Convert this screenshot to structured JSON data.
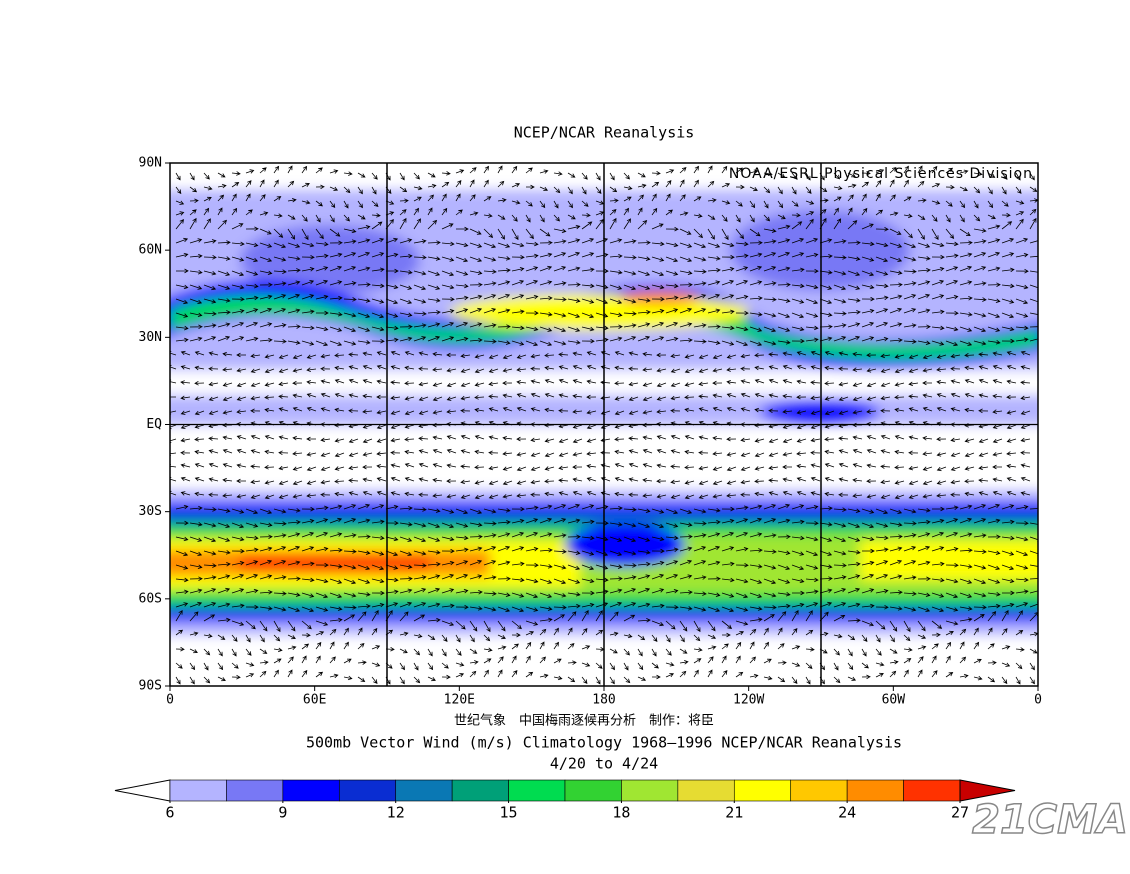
{
  "map": {
    "title": "NCEP/NCAR Reanalysis",
    "credit": "NOAA/ESRL Physical Sciences Division",
    "author_note": "世纪气象　中国梅雨逐候再分析　制作：将臣",
    "caption": "500mb Vector Wind (m/s) Climatology 1968–1996 NCEP/NCAR Reanalysis",
    "date_range": "4/20  to 4/24",
    "watermark": "21CMA",
    "xlim": [
      0,
      360
    ],
    "xticks": [
      0,
      {
        "value": 60,
        "label": "60E"
      },
      {
        "value": 120,
        "label": "120E"
      },
      {
        "value": 180,
        "label": "180"
      },
      {
        "value": 240,
        "label": "120W"
      },
      {
        "value": 300,
        "label": "60W"
      },
      {
        "value": 360,
        "label": "0"
      }
    ],
    "ylim": [
      -90,
      90
    ],
    "yticks": [
      {
        "value": 90,
        "label": "90N"
      },
      {
        "value": 60,
        "label": "60N"
      },
      {
        "value": 30,
        "label": "30N"
      },
      {
        "value": 0,
        "label": "EQ"
      },
      {
        "value": -30,
        "label": "30S"
      },
      {
        "value": -60,
        "label": "60S"
      },
      {
        "value": -90,
        "label": "90S"
      }
    ],
    "gridlines_lon": [
      90,
      180,
      270
    ],
    "gridlines_lat": [
      0
    ],
    "colorbar": {
      "range": [
        6,
        27
      ],
      "ticks": [
        6,
        9,
        12,
        15,
        18,
        21,
        24,
        27
      ],
      "colors": [
        "#b4b4ff",
        "#7878f5",
        "#0000ff",
        "#0a2dd2",
        "#0a78b4",
        "#00a078",
        "#00dc50",
        "#32d232",
        "#a0e632",
        "#e6dc32",
        "#ffff00",
        "#ffc800",
        "#ff8c00",
        "#ff3200"
      ],
      "over_color": "#c80000"
    }
  }
}
